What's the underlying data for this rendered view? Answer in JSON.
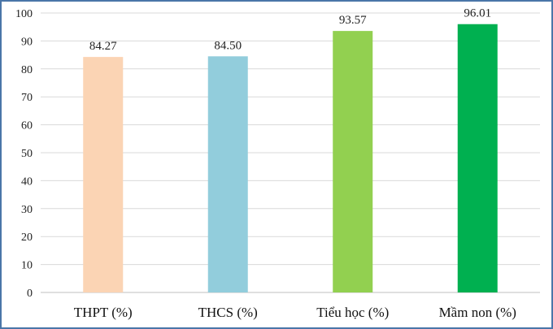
{
  "chart_data": {
    "type": "bar",
    "title": "",
    "xlabel": "",
    "ylabel": "",
    "categories": [
      "THPT (%)",
      "THCS (%)",
      "Tiểu học (%)",
      "Mầm non (%)"
    ],
    "values": [
      84.27,
      84.5,
      93.57,
      96.01
    ],
    "value_labels": [
      "84.27",
      "84.50",
      "93.57",
      "96.01"
    ],
    "colors": [
      "#fbd4b4",
      "#92cddc",
      "#92d050",
      "#00b050"
    ],
    "ylim": [
      0,
      100
    ],
    "yticks": [
      0,
      10,
      20,
      30,
      40,
      50,
      60,
      70,
      80,
      90,
      100
    ],
    "grid": true,
    "legend": "none"
  }
}
